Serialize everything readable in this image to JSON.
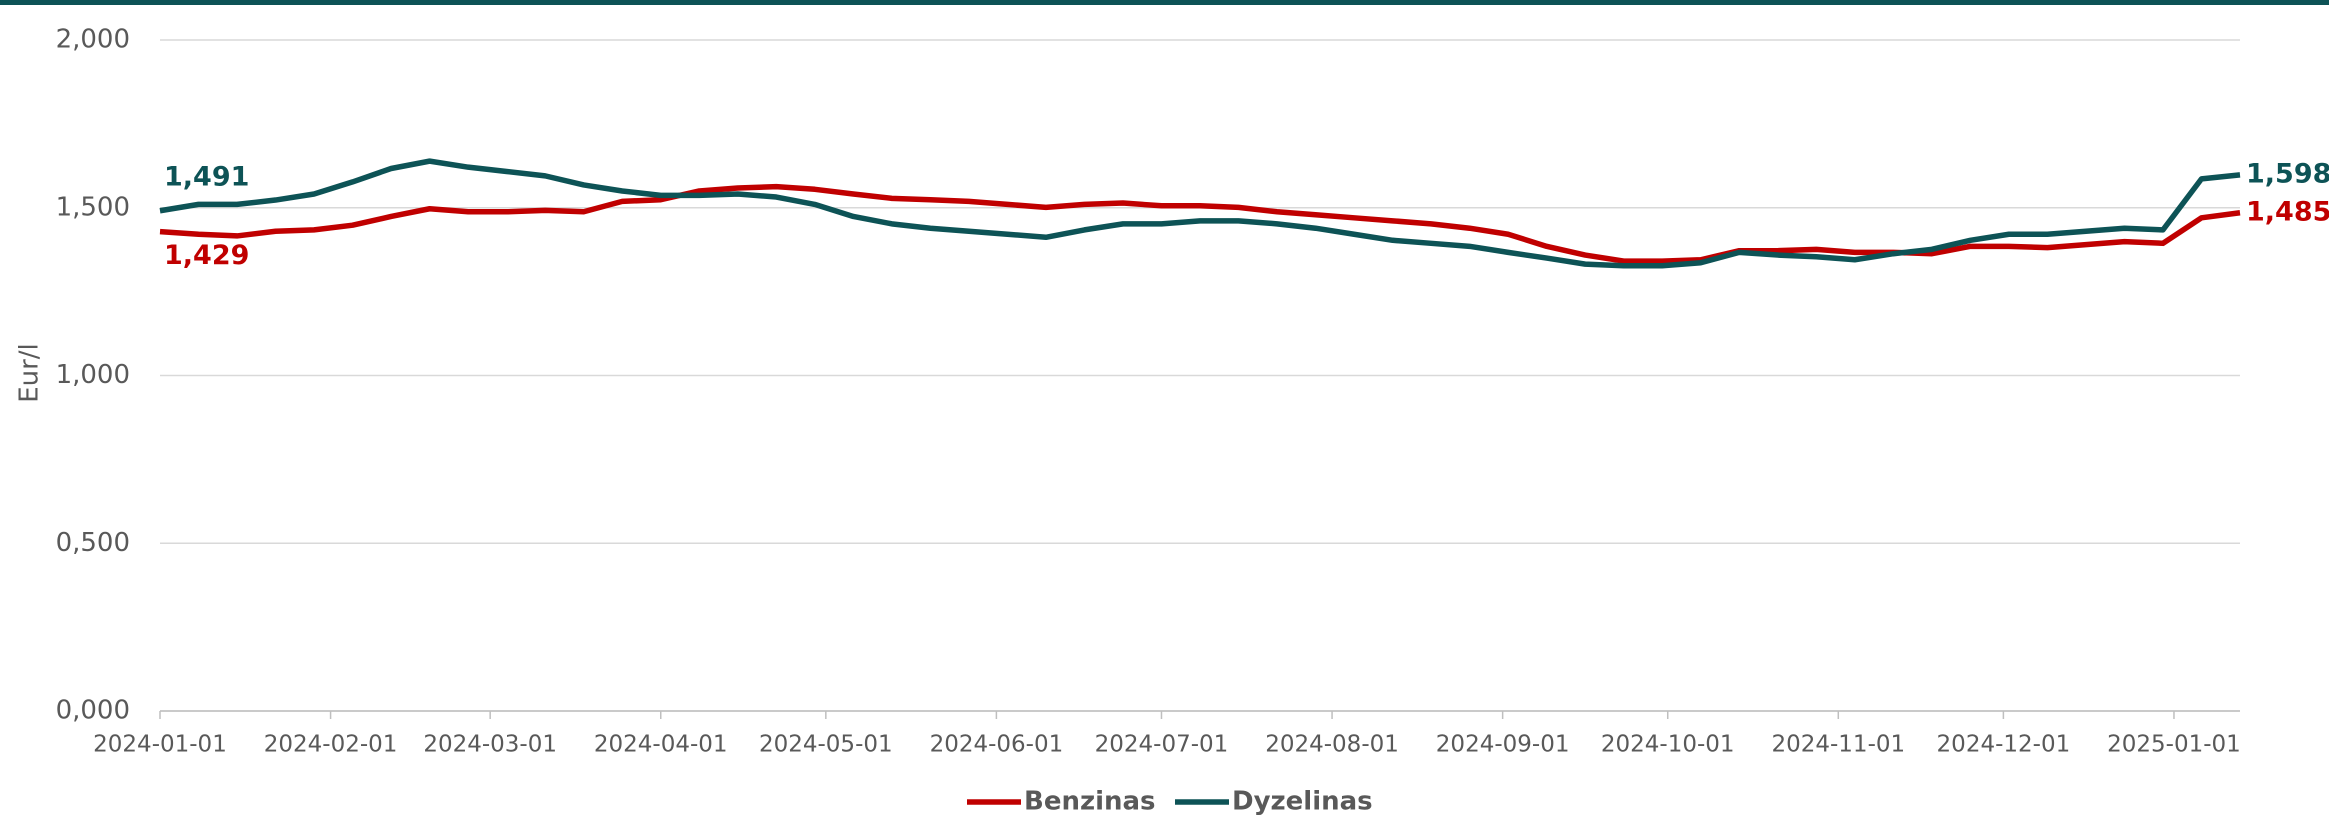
{
  "chart_data": {
    "type": "line",
    "y_label": "Eur/l",
    "x": [
      "2024-01-01",
      "2024-01-08",
      "2024-01-15",
      "2024-01-22",
      "2024-01-29",
      "2024-02-05",
      "2024-02-12",
      "2024-02-19",
      "2024-02-26",
      "2024-03-04",
      "2024-03-11",
      "2024-03-18",
      "2024-03-25",
      "2024-04-01",
      "2024-04-08",
      "2024-04-15",
      "2024-04-22",
      "2024-04-29",
      "2024-05-06",
      "2024-05-13",
      "2024-05-20",
      "2024-05-27",
      "2024-06-03",
      "2024-06-10",
      "2024-06-17",
      "2024-06-24",
      "2024-07-01",
      "2024-07-08",
      "2024-07-15",
      "2024-07-22",
      "2024-07-29",
      "2024-08-05",
      "2024-08-12",
      "2024-08-19",
      "2024-08-26",
      "2024-09-02",
      "2024-09-09",
      "2024-09-16",
      "2024-09-23",
      "2024-09-30",
      "2024-10-07",
      "2024-10-14",
      "2024-10-21",
      "2024-10-28",
      "2024-11-04",
      "2024-11-11",
      "2024-11-18",
      "2024-11-25",
      "2024-12-02",
      "2024-12-09",
      "2024-12-16",
      "2024-12-23",
      "2024-12-30",
      "2025-01-06",
      "2025-01-13"
    ],
    "series": [
      {
        "name": "Benzinas",
        "color": "#c00000",
        "values": [
          1.429,
          1.421,
          1.416,
          1.43,
          1.434,
          1.448,
          1.474,
          1.497,
          1.488,
          1.488,
          1.492,
          1.488,
          1.519,
          1.524,
          1.55,
          1.559,
          1.563,
          1.555,
          1.541,
          1.528,
          1.524,
          1.519,
          1.51,
          1.501,
          1.51,
          1.514,
          1.506,
          1.506,
          1.501,
          1.488,
          1.479,
          1.47,
          1.461,
          1.452,
          1.439,
          1.421,
          1.385,
          1.359,
          1.341,
          1.341,
          1.345,
          1.372,
          1.372,
          1.376,
          1.367,
          1.367,
          1.363,
          1.385,
          1.385,
          1.381,
          1.39,
          1.399,
          1.394,
          1.47,
          1.485
        ],
        "value_labels": [
          "1,429",
          null,
          null,
          null,
          null,
          null,
          null,
          null,
          null,
          null,
          null,
          null,
          null,
          null,
          null,
          null,
          null,
          null,
          null,
          null,
          null,
          null,
          null,
          null,
          null,
          null,
          null,
          null,
          null,
          null,
          null,
          null,
          null,
          null,
          null,
          null,
          null,
          null,
          null,
          null,
          null,
          null,
          null,
          null,
          null,
          null,
          null,
          null,
          null,
          null,
          null,
          null,
          null,
          null,
          "1,485"
        ]
      },
      {
        "name": "Dyzelinas",
        "color": "#0d5356",
        "values": [
          1.491,
          1.51,
          1.51,
          1.523,
          1.541,
          1.577,
          1.617,
          1.639,
          1.621,
          1.608,
          1.595,
          1.568,
          1.55,
          1.537,
          1.537,
          1.541,
          1.532,
          1.51,
          1.474,
          1.452,
          1.439,
          1.43,
          1.421,
          1.412,
          1.434,
          1.452,
          1.452,
          1.461,
          1.461,
          1.452,
          1.439,
          1.421,
          1.403,
          1.394,
          1.385,
          1.367,
          1.35,
          1.332,
          1.327,
          1.327,
          1.336,
          1.367,
          1.359,
          1.354,
          1.345,
          1.363,
          1.376,
          1.403,
          1.421,
          1.421,
          1.43,
          1.439,
          1.434,
          1.586,
          1.598
        ],
        "value_labels": [
          "1,491",
          null,
          null,
          null,
          null,
          null,
          null,
          null,
          null,
          null,
          null,
          null,
          null,
          null,
          null,
          null,
          null,
          null,
          null,
          null,
          null,
          null,
          null,
          null,
          null,
          null,
          null,
          null,
          null,
          null,
          null,
          null,
          null,
          null,
          null,
          null,
          null,
          null,
          null,
          null,
          null,
          null,
          null,
          null,
          null,
          null,
          null,
          null,
          null,
          null,
          null,
          null,
          null,
          null,
          "1,598"
        ]
      }
    ],
    "xlim": [
      "2024-01-01",
      "2025-01-13"
    ],
    "xticks": [
      "2024-01-01",
      "2024-02-01",
      "2024-03-01",
      "2024-04-01",
      "2024-05-01",
      "2024-06-01",
      "2024-07-01",
      "2024-08-01",
      "2024-09-01",
      "2024-10-01",
      "2024-11-01",
      "2024-12-01",
      "2025-01-01"
    ],
    "ylim": [
      0,
      2
    ],
    "yticks": [
      {
        "value": 0,
        "label": "0,000"
      },
      {
        "value": 0.5,
        "label": "0,500"
      },
      {
        "value": 1,
        "label": "1,000"
      },
      {
        "value": 1.5,
        "label": "1,500"
      },
      {
        "value": 2,
        "label": "2,000"
      }
    ],
    "grid": true,
    "legend": "bottom"
  }
}
